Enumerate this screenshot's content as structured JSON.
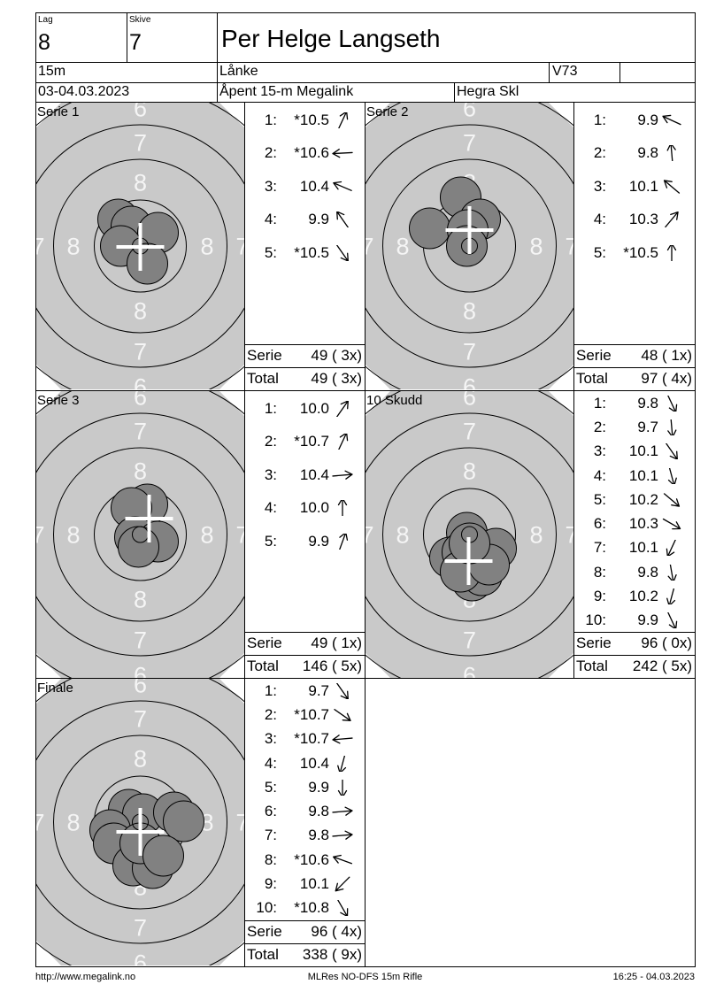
{
  "header": {
    "lag_label": "Lag",
    "lag_value": "8",
    "skive_label": "Skive",
    "skive_value": "7",
    "shooter_name": "Per Helge Langseth",
    "distance": "15m",
    "venue": "Lånke",
    "shooter_class": "V73",
    "date_range": "03-04.03.2023",
    "event_name": "Åpent 15-m Megalink",
    "organizer": "Hegra Skl"
  },
  "footer": {
    "url": "http://www.megalink.no",
    "program": "MLRes NO-DFS 15m Rifle",
    "timestamp": "16:25 - 04.03.2023"
  },
  "colors": {
    "target_bg": "#c9c9c9",
    "shot_fill": "#818181",
    "ring_stroke": "#000000",
    "ring_number": "#f5f5f5",
    "crosshair": "#ffffff",
    "text": "#000000"
  },
  "ring_labels": [
    "8",
    "7",
    "6"
  ],
  "panels": [
    {
      "label": "Serie 1",
      "shots": [
        {
          "n": "1:",
          "v": "*10.5",
          "dir": 65
        },
        {
          "n": "2:",
          "v": "*10.6",
          "dir": 183
        },
        {
          "n": "3:",
          "v": "10.4",
          "dir": 157
        },
        {
          "n": "4:",
          "v": "9.9",
          "dir": 125
        },
        {
          "n": "5:",
          "v": "*10.5",
          "dir": -55
        }
      ],
      "serie_label": "Serie",
      "serie_value": "49 ( 3x)",
      "total_label": "Total",
      "total_value": "49 ( 3x)",
      "target": {
        "cross": [
          0,
          1
        ],
        "holes": [
          [
            -25,
            -30
          ],
          [
            -10,
            -22
          ],
          [
            20,
            -15
          ],
          [
            -22,
            0
          ],
          [
            8,
            20
          ]
        ]
      }
    },
    {
      "label": "Serie 2",
      "shots": [
        {
          "n": "1:",
          "v": "9.9",
          "dir": 155
        },
        {
          "n": "2:",
          "v": "9.8",
          "dir": 95
        },
        {
          "n": "3:",
          "v": "10.1",
          "dir": 140
        },
        {
          "n": "4:",
          "v": "10.3",
          "dir": 50
        },
        {
          "n": "5:",
          "v": "*10.5",
          "dir": 90
        }
      ],
      "serie_label": "Serie",
      "serie_value": "48 ( 1x)",
      "total_label": "Total",
      "total_value": "97 ( 4x)",
      "target": {
        "cross": [
          0,
          -18
        ],
        "holes": [
          [
            -10,
            -55
          ],
          [
            -45,
            -20
          ],
          [
            12,
            -30
          ],
          [
            -2,
            -18
          ],
          [
            -3,
            0
          ]
        ]
      }
    },
    {
      "label": "Serie 3",
      "shots": [
        {
          "n": "1:",
          "v": "10.0",
          "dir": 55
        },
        {
          "n": "2:",
          "v": "*10.7",
          "dir": 65
        },
        {
          "n": "3:",
          "v": "10.4",
          "dir": 5
        },
        {
          "n": "4:",
          "v": "10.0",
          "dir": 90
        },
        {
          "n": "5:",
          "v": "9.9",
          "dir": 70
        }
      ],
      "serie_label": "Serie",
      "serie_value": "49 ( 1x)",
      "total_label": "Total",
      "total_value": "146 ( 5x)",
      "target": {
        "cross": [
          10,
          -18
        ],
        "holes": [
          [
            8,
            -34
          ],
          [
            -10,
            -30
          ],
          [
            -6,
            3
          ],
          [
            20,
            8
          ],
          [
            -2,
            14
          ]
        ]
      }
    },
    {
      "label": "10 Skudd",
      "shots": [
        {
          "n": "1:",
          "v": "9.8",
          "dir": -65
        },
        {
          "n": "2:",
          "v": "9.7",
          "dir": -85
        },
        {
          "n": "3:",
          "v": "10.1",
          "dir": -55
        },
        {
          "n": "4:",
          "v": "10.1",
          "dir": -75
        },
        {
          "n": "5:",
          "v": "10.2",
          "dir": -40
        },
        {
          "n": "6:",
          "v": "10.3",
          "dir": -30
        },
        {
          "n": "7:",
          "v": "10.1",
          "dir": -115
        },
        {
          "n": "8:",
          "v": "9.8",
          "dir": -80
        },
        {
          "n": "9:",
          "v": "10.2",
          "dir": -105
        },
        {
          "n": "10:",
          "v": "9.9",
          "dir": -65
        }
      ],
      "serie_label": "Serie",
      "serie_value": "96 ( 0x)",
      "total_label": "Total",
      "total_value": "242 ( 5x)",
      "target": {
        "cross": [
          -1,
          30
        ],
        "holes": [
          [
            -3,
            -2
          ],
          [
            -22,
            26
          ],
          [
            -8,
            20
          ],
          [
            10,
            32
          ],
          [
            30,
            16
          ],
          [
            3,
            52
          ],
          [
            14,
            46
          ],
          [
            -10,
            42
          ],
          [
            22,
            34
          ],
          [
            0,
            10
          ]
        ]
      }
    },
    {
      "label": "Finale",
      "shots": [
        {
          "n": "1:",
          "v": "9.7",
          "dir": -55
        },
        {
          "n": "2:",
          "v": "*10.7",
          "dir": -35
        },
        {
          "n": "3:",
          "v": "*10.7",
          "dir": 185
        },
        {
          "n": "4:",
          "v": "10.4",
          "dir": -105
        },
        {
          "n": "5:",
          "v": "9.9",
          "dir": -90
        },
        {
          "n": "6:",
          "v": "9.8",
          "dir": 5
        },
        {
          "n": "7:",
          "v": "9.8",
          "dir": 5
        },
        {
          "n": "8:",
          "v": "*10.6",
          "dir": 160
        },
        {
          "n": "9:",
          "v": "10.1",
          "dir": -135
        },
        {
          "n": "10:",
          "v": "*10.8",
          "dir": -60
        }
      ],
      "serie_label": "Serie",
      "serie_value": "96 ( 4x)",
      "total_label": "Total",
      "total_value": "338 ( 9x)",
      "target": {
        "cross": [
          0,
          11
        ],
        "holes": [
          [
            -13,
            -14
          ],
          [
            3,
            -9
          ],
          [
            38,
            -11
          ],
          [
            49,
            -1
          ],
          [
            -34,
            9
          ],
          [
            -30,
            24
          ],
          [
            -8,
            49
          ],
          [
            14,
            52
          ],
          [
            0,
            24
          ],
          [
            26,
            38
          ]
        ]
      }
    }
  ]
}
